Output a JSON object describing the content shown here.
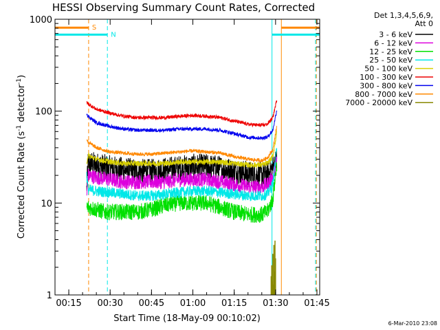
{
  "chart_data": {
    "type": "line",
    "title": "HESSI Observing Summary Count Rates, Corrected",
    "xlabel": "Start Time (18-May-09 00:10:02)",
    "ylabel": "Corrected Count Rate (s",
    "ylabel_sup1": "-1",
    "ylabel_mid": " detector",
    "ylabel_sup2": "-1",
    "ylabel_end": ")",
    "x_unit": "minutes after 00:10:02",
    "xlim": [
      0,
      96
    ],
    "x_ticks": [
      {
        "value": 5,
        "label": "00:15"
      },
      {
        "value": 20,
        "label": "00:30"
      },
      {
        "value": 35,
        "label": "00:45"
      },
      {
        "value": 50,
        "label": "01:00"
      },
      {
        "value": 65,
        "label": "01:15"
      },
      {
        "value": 80,
        "label": "01:30"
      },
      {
        "value": 95,
        "label": "01:45"
      }
    ],
    "yscale": "log",
    "ylim": [
      1,
      1000
    ],
    "y_ticks": [
      {
        "value": 1,
        "label": "1"
      },
      {
        "value": 10,
        "label": "10"
      },
      {
        "value": 100,
        "label": "100"
      },
      {
        "value": 1000,
        "label": "1000"
      }
    ],
    "legend_header": [
      "Det 1,3,4,5,6,9,",
      "Att 0"
    ],
    "legend_position": "right",
    "series": [
      {
        "name": "3 - 6 keV",
        "color": "#000000",
        "x": [
          11.5,
          12,
          15,
          20,
          25,
          30,
          35,
          40,
          45,
          50,
          55,
          60,
          65,
          70,
          75,
          77,
          79,
          80.5
        ],
        "y": [
          14,
          27,
          26,
          24,
          23,
          22,
          22,
          23,
          24,
          25,
          25,
          24,
          22,
          21,
          20,
          21,
          24,
          30
        ],
        "noise": 0.14
      },
      {
        "name": "6 - 12 keV",
        "color": "#dd00dd",
        "x": [
          11.5,
          12,
          15,
          20,
          25,
          30,
          35,
          40,
          45,
          50,
          55,
          60,
          65,
          70,
          75,
          77,
          79,
          80.5
        ],
        "y": [
          12,
          20,
          19,
          18,
          17,
          17,
          17,
          17,
          18,
          18,
          18,
          17,
          16,
          15,
          15,
          16,
          19,
          30
        ],
        "noise": 0.08
      },
      {
        "name": "12 - 25 keV",
        "color": "#00e000",
        "x": [
          11.5,
          12,
          15,
          18,
          22,
          25,
          30,
          35,
          40,
          45,
          50,
          55,
          60,
          65,
          70,
          75,
          77,
          79,
          80.5
        ],
        "y": [
          9,
          9,
          8.5,
          8,
          8,
          8,
          8,
          8.5,
          9.5,
          10,
          10,
          10,
          9,
          8,
          7.5,
          7.5,
          8,
          11,
          28
        ],
        "noise": 0.09
      },
      {
        "name": "25 - 50 keV",
        "color": "#00e8e8",
        "x": [
          11.5,
          12,
          15,
          20,
          25,
          30,
          35,
          40,
          45,
          50,
          55,
          60,
          65,
          70,
          75,
          77,
          79,
          80.5
        ],
        "y": [
          20,
          14,
          13.5,
          13,
          12.5,
          12,
          12,
          12.5,
          13,
          13.5,
          13.5,
          13,
          12.5,
          12,
          12,
          12.5,
          16,
          40
        ],
        "noise": 0.06
      },
      {
        "name": "50 - 100 keV",
        "color": "#d8d000",
        "x": [
          11.5,
          12,
          15,
          20,
          25,
          30,
          35,
          40,
          45,
          50,
          55,
          60,
          65,
          70,
          75,
          77,
          79,
          80.5
        ],
        "y": [
          28,
          33,
          30,
          28,
          27,
          27,
          27,
          27,
          28,
          28,
          28,
          28,
          27,
          26,
          26,
          27,
          32,
          60
        ],
        "noise": 0.03
      },
      {
        "name": "100 - 300 keV",
        "color": "#ee0000",
        "x": [
          11.5,
          12,
          15,
          20,
          25,
          30,
          35,
          40,
          45,
          50,
          55,
          60,
          65,
          70,
          75,
          77,
          79,
          80.5
        ],
        "y": [
          125,
          120,
          105,
          95,
          88,
          85,
          85,
          85,
          88,
          90,
          88,
          85,
          78,
          72,
          70,
          72,
          85,
          135
        ],
        "noise": 0.02
      },
      {
        "name": "300 - 800 keV",
        "color": "#0000ee",
        "x": [
          11.5,
          12,
          15,
          20,
          25,
          30,
          35,
          40,
          45,
          50,
          55,
          60,
          65,
          70,
          75,
          77,
          79,
          80.5
        ],
        "y": [
          95,
          88,
          75,
          68,
          64,
          62,
          62,
          62,
          64,
          64,
          64,
          62,
          57,
          52,
          51,
          52,
          62,
          105
        ],
        "noise": 0.02
      },
      {
        "name": "800 - 7000 keV",
        "color": "#ff8800",
        "x": [
          11.5,
          12,
          15,
          20,
          25,
          30,
          35,
          40,
          45,
          50,
          55,
          60,
          65,
          70,
          75,
          77,
          79,
          80.5
        ],
        "y": [
          50,
          46,
          40,
          36,
          35,
          34,
          34,
          35,
          36,
          37,
          36,
          35,
          32,
          30,
          29,
          31,
          38,
          70
        ],
        "noise": 0.02
      },
      {
        "name": "7000 - 20000 keV",
        "color": "#888800",
        "x": [
          78.4,
          78.6,
          78.8,
          79.0,
          79.2,
          79.4,
          79.6,
          79.8,
          80.0
        ],
        "y": [
          1.6,
          2.1,
          1.4,
          2.8,
          1.3,
          3.5,
          1.8,
          3.9,
          2.5
        ],
        "noise": 0.0,
        "spiky": true
      }
    ],
    "vertical_lines": [
      {
        "x": 12.2,
        "color": "#ff8800",
        "style": "dashed"
      },
      {
        "x": 19.0,
        "color": "#00e8e8",
        "style": "dashed"
      },
      {
        "x": 78.7,
        "color": "#00e8e8",
        "style": "solid"
      },
      {
        "x": 82.1,
        "color": "#ff8800",
        "style": "solid"
      },
      {
        "x": 94.5,
        "color": "#00e8e8",
        "style": "dashed"
      },
      {
        "x": 94.8,
        "color": "#ff8800",
        "style": "dashed"
      }
    ],
    "flag_bars": [
      {
        "label": "S",
        "color": "#ff8800",
        "y": 810,
        "segments": [
          [
            0,
            12.2
          ],
          [
            82.1,
            96
          ]
        ]
      },
      {
        "label": "N",
        "color": "#00e8e8",
        "y": 680,
        "segments": [
          [
            0,
            19.0
          ],
          [
            78.7,
            96
          ]
        ]
      }
    ]
  },
  "footer": {
    "stamp": "6-Mar-2010 23:08"
  }
}
